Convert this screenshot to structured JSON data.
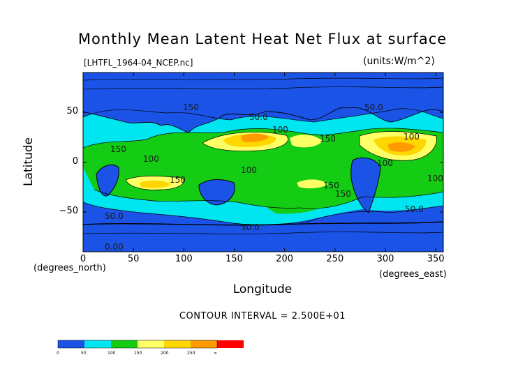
{
  "title": "Monthly Mean Latent Heat Net Flux at surface",
  "file_label": "[LHTFL_1964-04_NCEP.nc]",
  "units_label": "(units:W/m^2)",
  "contour_interval": "CONTOUR INTERVAL = 2.500E+01",
  "colors": {
    "blue": "#1a53e6",
    "cyan": "#00e6f0",
    "green": "#14cc14",
    "lightyellow": "#ffff66",
    "yellow": "#ffd700",
    "orange": "#ff9a00",
    "red": "#ff0000"
  },
  "chart_data": {
    "type": "contour",
    "title": "Monthly Mean Latent Heat Net Flux at surface",
    "xlabel": "Longitude",
    "ylabel": "Latitude",
    "x_unit": "(degrees_east)",
    "y_unit": "(degrees_north)",
    "xlim": [
      0,
      357.5
    ],
    "ylim": [
      -90,
      90
    ],
    "xticks": [
      "0",
      "50",
      "100",
      "150",
      "200",
      "250",
      "300",
      "350"
    ],
    "yticks": [
      "50",
      "0",
      "−50"
    ],
    "contour_labels": [
      "50.0",
      "100",
      "150",
      "50.0",
      "100",
      "150",
      "100",
      "150",
      "50.0",
      "150",
      "100",
      "100",
      "150",
      "100",
      "150",
      "50.0",
      "50.0",
      "0.00"
    ],
    "colorbar": {
      "levels": [
        "0",
        "50",
        "100",
        "150",
        "200",
        "250",
        "∞"
      ]
    }
  }
}
